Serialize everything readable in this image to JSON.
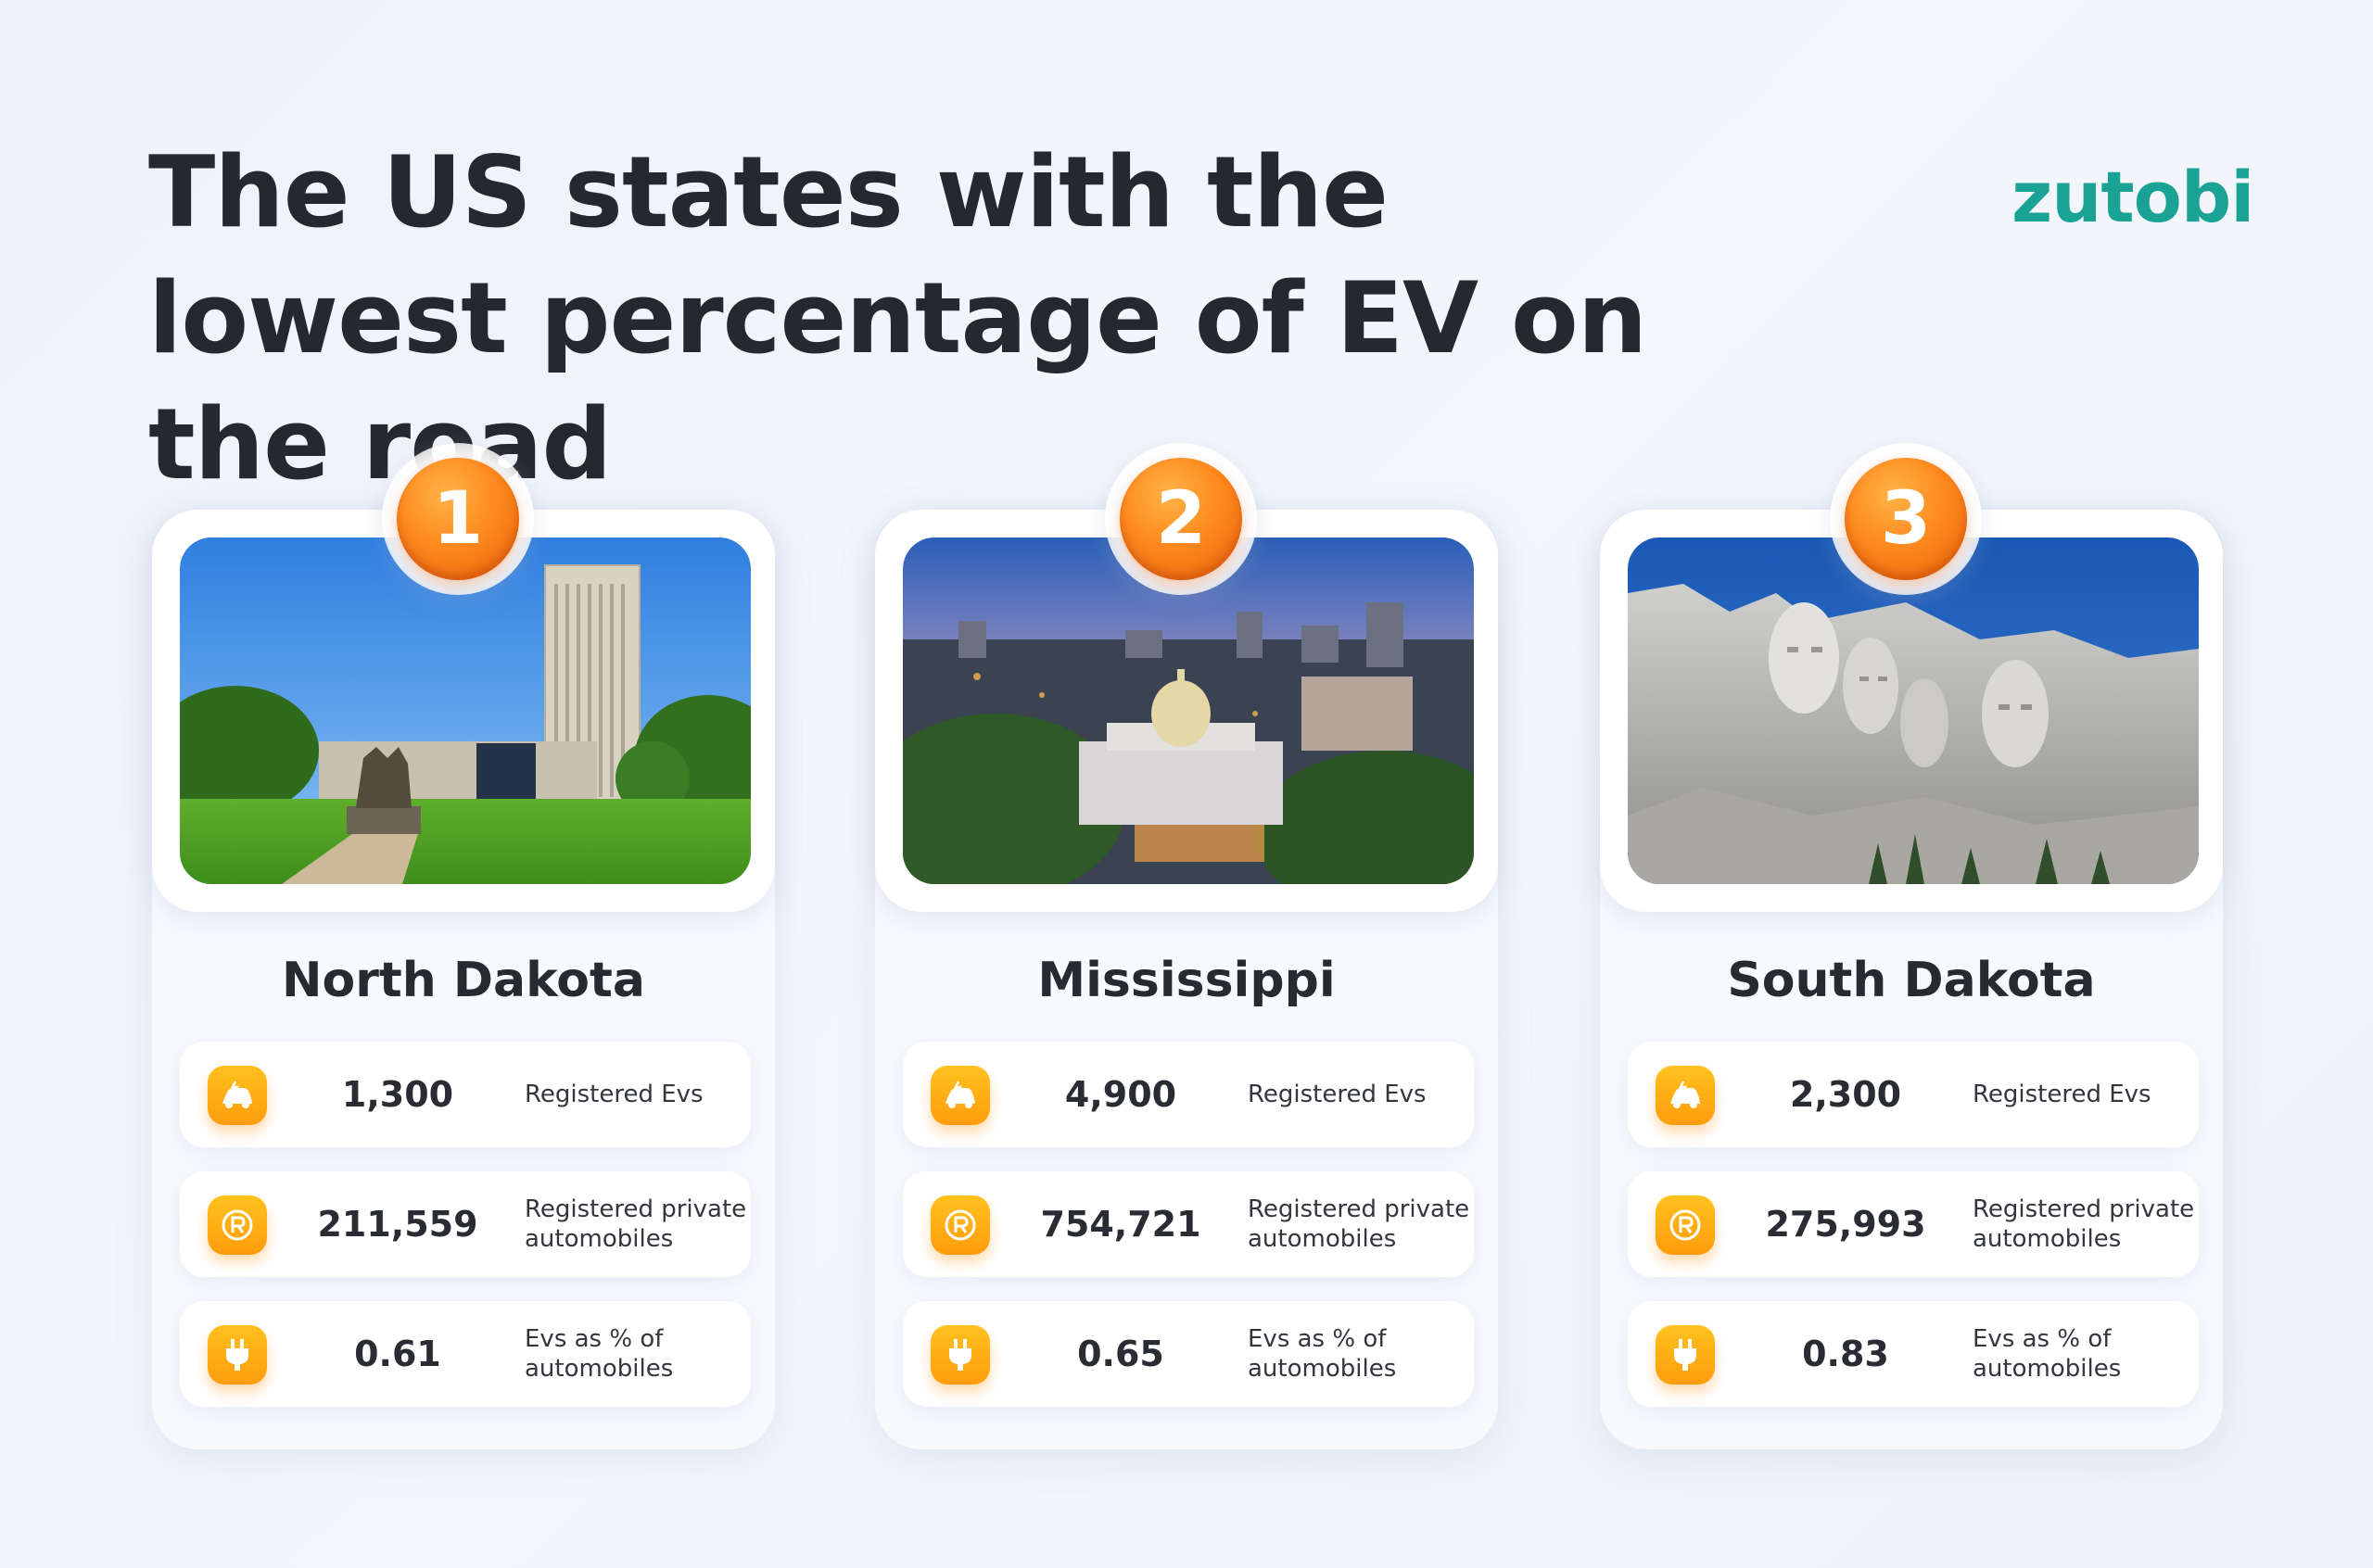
{
  "header": {
    "title": "The US states with the lowest percentage of EV on the road",
    "logo": "zutobi"
  },
  "stat_labels": {
    "evs": "Registered Evs",
    "private": "Registered private automobiles",
    "percent": "Evs as % of automobiles"
  },
  "icons": {
    "evs": "electric-car-icon",
    "private": "registration-r-icon",
    "percent": "plug-icon"
  },
  "colors": {
    "accent_orange": "#ff8a1e",
    "icon_yellow": "#ffb416",
    "logo_teal": "#1aa395"
  },
  "states": [
    {
      "rank": "1",
      "name": "North Dakota",
      "registered_evs": "1,300",
      "private_automobiles": "211,559",
      "ev_percent": "0.61"
    },
    {
      "rank": "2",
      "name": "Mississippi",
      "registered_evs": "4,900",
      "private_automobiles": "754,721",
      "ev_percent": "0.65"
    },
    {
      "rank": "3",
      "name": "South Dakota",
      "registered_evs": "2,300",
      "private_automobiles": "275,993",
      "ev_percent": "0.83"
    }
  ]
}
